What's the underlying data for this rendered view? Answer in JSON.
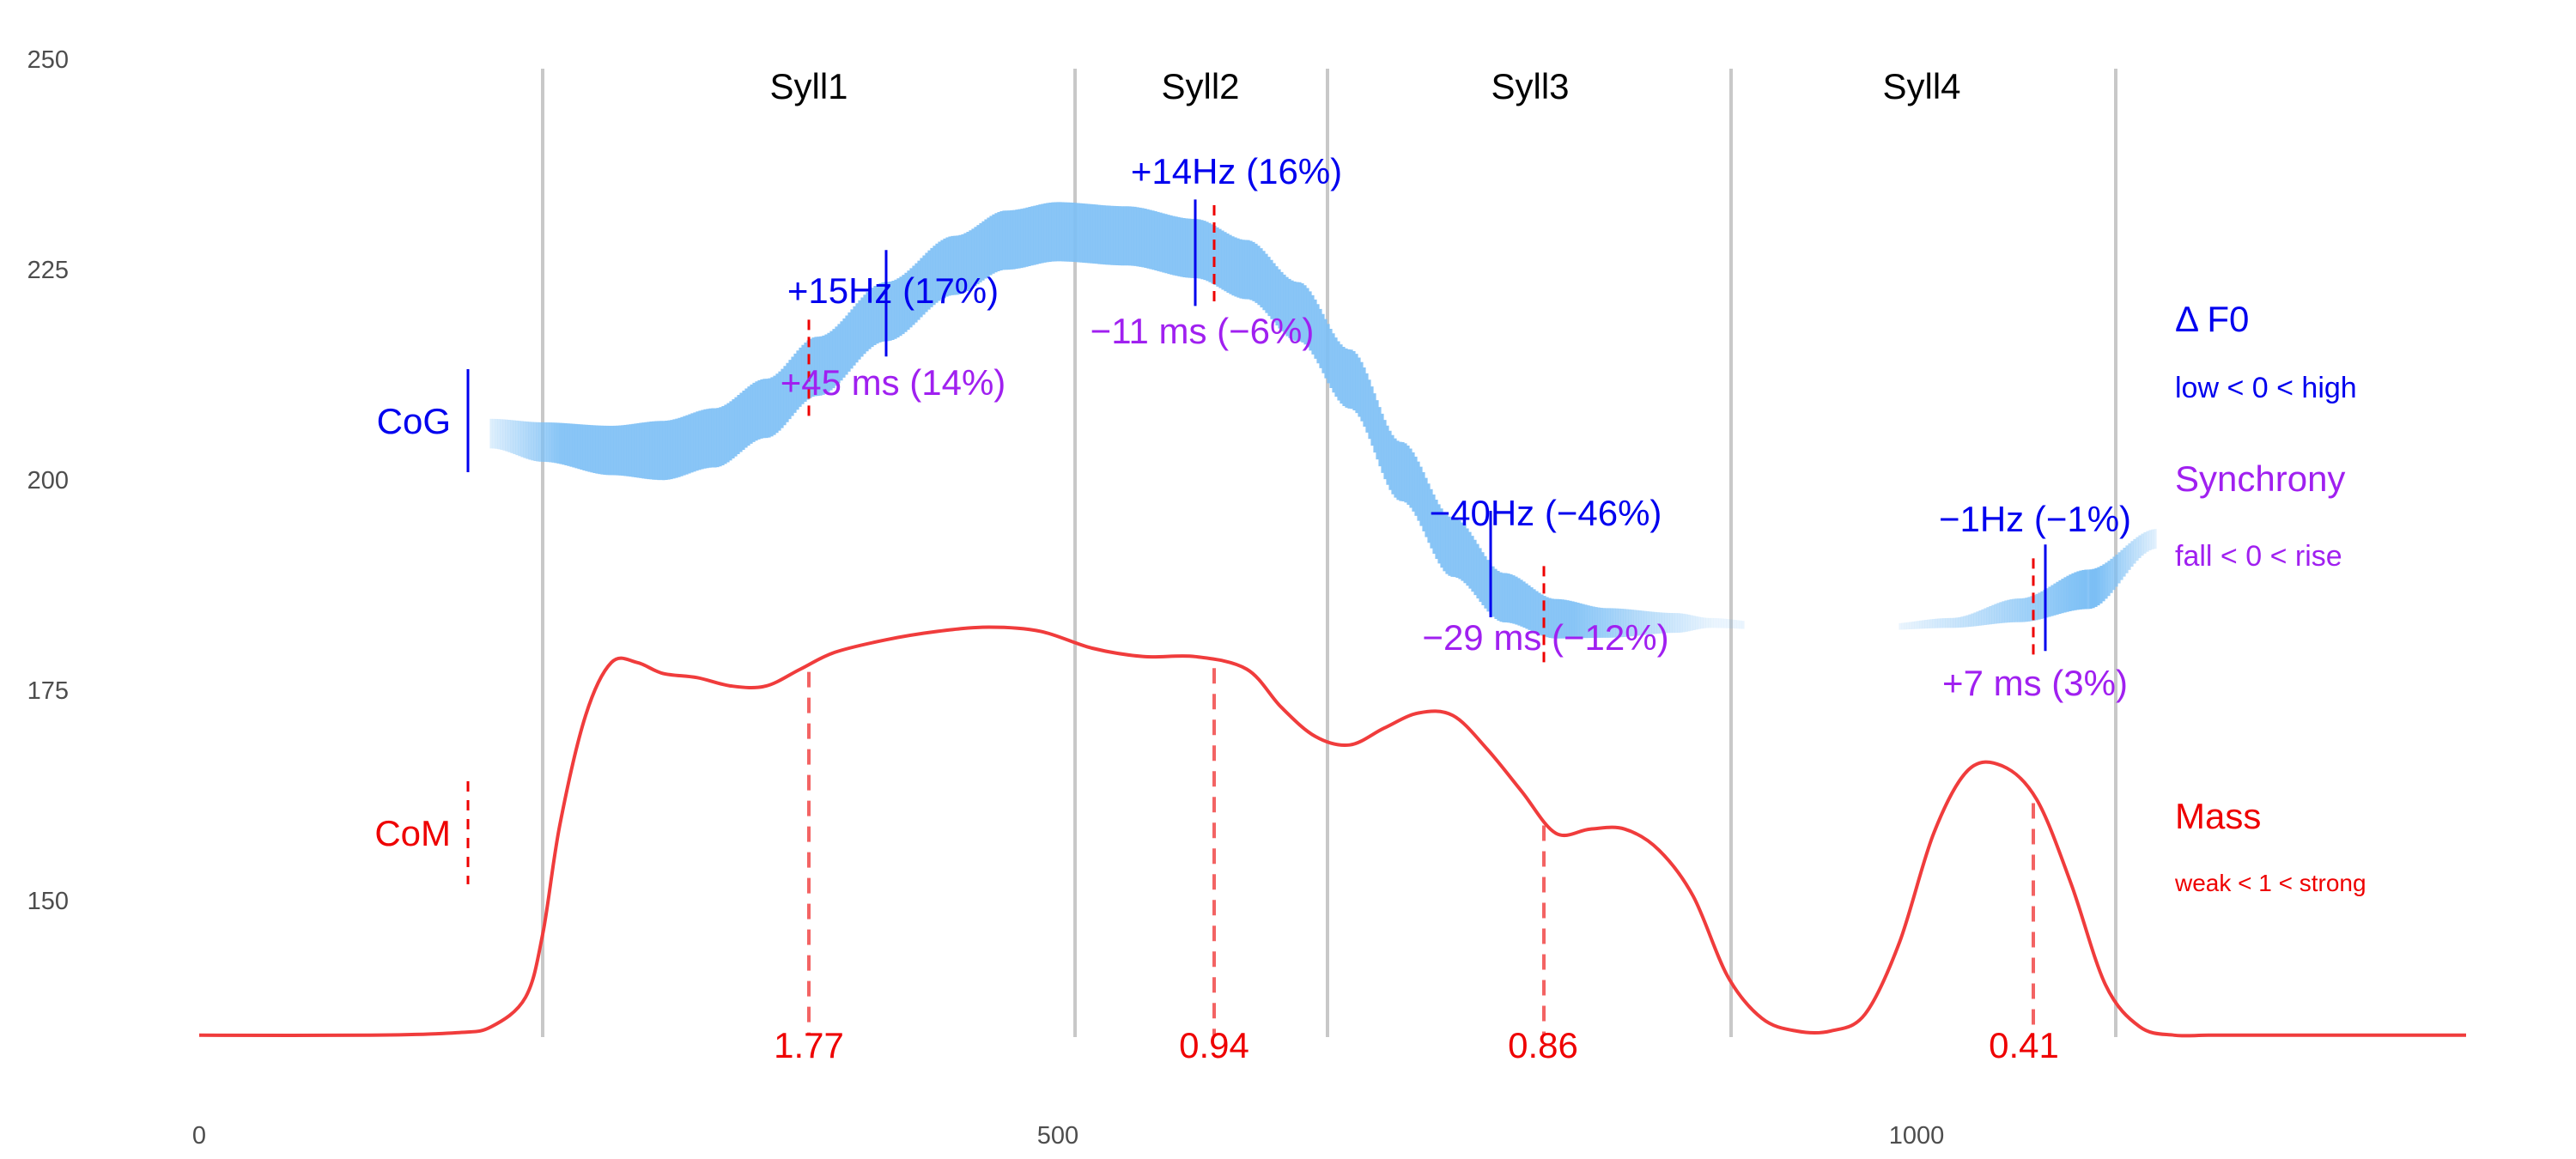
{
  "colors": {
    "f0": "#0000ee",
    "synchrony": "#a020f0",
    "mass": "#ee0000",
    "mass_curve": "#f03c3c",
    "ribbon": "#7cbff5",
    "boundary": "#c8c8c8",
    "tick": "#4d4d4d"
  },
  "chart_data": {
    "type": "line",
    "xlim": [
      0,
      1320
    ],
    "ylim": [
      130,
      252
    ],
    "x_ticks": [
      {
        "value": 0,
        "label": "0"
      },
      {
        "value": 500,
        "label": "500"
      },
      {
        "value": 1000,
        "label": "1000"
      }
    ],
    "y_ticks": [
      {
        "value": 150,
        "label": "150"
      },
      {
        "value": 175,
        "label": "175"
      },
      {
        "value": 200,
        "label": "200"
      },
      {
        "value": 225,
        "label": "225"
      },
      {
        "value": 250,
        "label": "250"
      }
    ],
    "grid": false,
    "syllable_boundaries": [
      200,
      510,
      657,
      892,
      1116
    ],
    "syllables": [
      {
        "label": "Syll1",
        "x": 355,
        "f0_text": "+15Hz (17%)",
        "sync_text": "+45 ms (14%)",
        "mass_text": "1.77",
        "f0_x": 400,
        "f0_y": 221,
        "com_x": 355,
        "mass": 1.77
      },
      {
        "label": "Syll2",
        "x": 583,
        "f0_text": "+14Hz (16%)",
        "sync_text": "−11 ms (−6%)",
        "mass_text": "0.94",
        "f0_x": 580,
        "f0_y": 227,
        "com_x": 591,
        "mass": 0.94
      },
      {
        "label": "Syll3",
        "x": 775,
        "f0_text": "−40Hz (−46%)",
        "sync_text": "−29 ms (−12%)",
        "mass_text": "0.86",
        "f0_x": 752,
        "f0_y": 190,
        "com_x": 783,
        "mass": 0.86
      },
      {
        "label": "Syll4",
        "x": 1003,
        "f0_text": "−1Hz (−1%)",
        "sync_text": "+7 ms (3%)",
        "mass_text": "0.41",
        "f0_x": 1075,
        "f0_y": 186,
        "com_x": 1068,
        "mass": 0.41
      }
    ],
    "f0_series": {
      "x": [
        170,
        200,
        240,
        270,
        300,
        330,
        360,
        400,
        440,
        470,
        500,
        540,
        580,
        610,
        640,
        670,
        700,
        730,
        760,
        790,
        820,
        860,
        880,
        920,
        980,
        1020,
        1060,
        1100,
        1140
      ],
      "y": [
        205.5,
        204.5,
        203.5,
        203.5,
        205,
        208.5,
        213.5,
        220,
        225.5,
        228.5,
        229.5,
        229,
        227.5,
        225,
        220,
        212,
        201,
        192,
        186,
        183.5,
        183,
        183,
        183,
        182.5,
        182.5,
        183,
        184.5,
        187,
        193
      ],
      "width": [
        1.5,
        2,
        2.5,
        3,
        3,
        3,
        3,
        3,
        3,
        3,
        3,
        3,
        3,
        3,
        3,
        3,
        3,
        3,
        2.5,
        2,
        1.5,
        1,
        0.5,
        0.3,
        0.3,
        0.5,
        1.2,
        2,
        1
      ],
      "gap": [
        900,
        990
      ]
    },
    "mass_series": {
      "x": [
        0,
        100,
        150,
        170,
        190,
        200,
        210,
        225,
        240,
        255,
        270,
        290,
        310,
        330,
        350,
        370,
        400,
        430,
        460,
        490,
        520,
        550,
        580,
        610,
        630,
        650,
        670,
        690,
        710,
        730,
        750,
        770,
        790,
        810,
        830,
        850,
        870,
        890,
        910,
        930,
        950,
        970,
        990,
        1010,
        1030,
        1050,
        1070,
        1090,
        1110,
        1130,
        1150,
        1170,
        1200,
        1260,
        1320
      ],
      "y": [
        134,
        134,
        134.3,
        135,
        138.5,
        146,
        159,
        172,
        178.3,
        178.3,
        177,
        176.5,
        175.5,
        175.5,
        177.5,
        179.5,
        181,
        182,
        182.5,
        182,
        180,
        179,
        179,
        177.5,
        173,
        169.5,
        168.5,
        170.5,
        172.3,
        172,
        168,
        163,
        158,
        158.5,
        158.5,
        156,
        150.5,
        141,
        136,
        134.5,
        134.5,
        136.5,
        145,
        158,
        165.5,
        166,
        162,
        152,
        140,
        135,
        134,
        134,
        134,
        134,
        134
      ]
    },
    "legend": {
      "placement": "right",
      "entries": [
        {
          "title": "Δ F0",
          "subtitle": "low < 0 < high"
        },
        {
          "title": "Synchrony",
          "subtitle": "fall < 0 < rise"
        },
        {
          "title": "Mass",
          "subtitle": "weak < 1 < strong"
        }
      ]
    },
    "cog_label": "CoG",
    "com_label": "CoM"
  }
}
